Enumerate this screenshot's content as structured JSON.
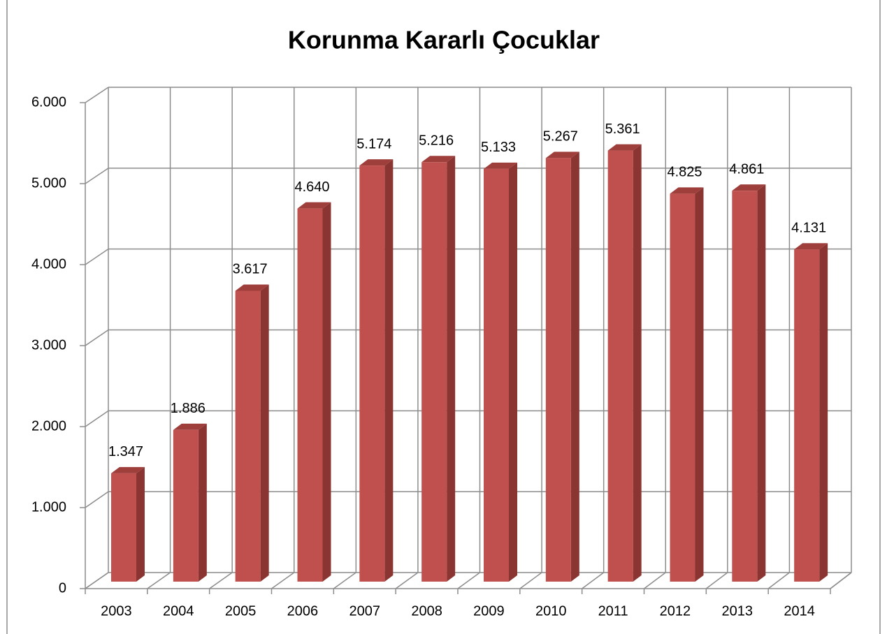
{
  "chart_data": {
    "type": "bar3d",
    "title": "Korunma Kararlı Çocuklar",
    "categories": [
      "2003",
      "2004",
      "2005",
      "2006",
      "2007",
      "2008",
      "2009",
      "2010",
      "2011",
      "2012",
      "2013",
      "2014"
    ],
    "values": [
      1347,
      1886,
      3617,
      4640,
      5174,
      5216,
      5133,
      5267,
      5361,
      4825,
      4861,
      4131
    ],
    "value_labels": [
      "1.347",
      "1.886",
      "3.617",
      "4.640",
      "5.174",
      "5.216",
      "5.133",
      "5.267",
      "5.361",
      "4.825",
      "4.861",
      "4.131"
    ],
    "color": "#c0504d",
    "ylim": [
      0,
      6000
    ],
    "yticks": [
      0,
      {
        "value": 1000,
        "label": "1.000"
      },
      {
        "value": 2000,
        "label": "2.000"
      },
      {
        "value": 3000,
        "label": "3.000"
      },
      {
        "value": 4000,
        "label": "4.000"
      },
      {
        "value": 5000,
        "label": "5.000"
      },
      {
        "value": 6000,
        "label": "6.000"
      }
    ],
    "grid": true
  }
}
